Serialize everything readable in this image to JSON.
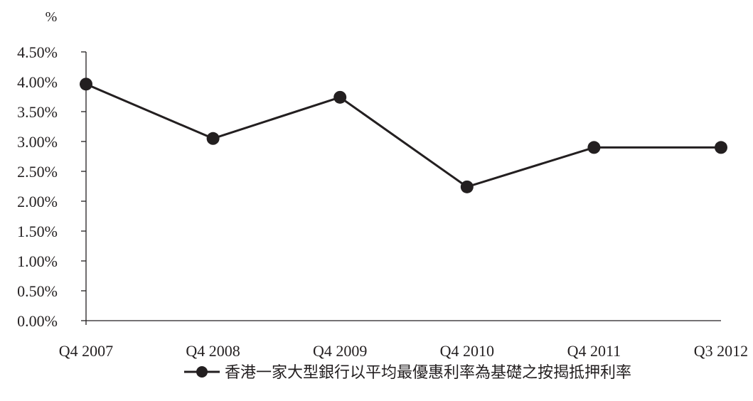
{
  "chart_data": {
    "type": "line",
    "unit_label": "%",
    "categories": [
      "Q4 2007",
      "Q4 2008",
      "Q4 2009",
      "Q4 2010",
      "Q4 2011",
      "Q3 2012"
    ],
    "yticks": [
      "0.00%",
      "0.50%",
      "1.00%",
      "1.50%",
      "2.00%",
      "2.50%",
      "3.00%",
      "3.50%",
      "4.00%",
      "4.50%"
    ],
    "ylim": [
      0,
      4.5
    ],
    "grid": false,
    "legend_position": "bottom",
    "series": [
      {
        "name": "香港一家大型銀行以平均最優惠利率為基礎之按揭抵押利率",
        "color": "#231f20",
        "values": [
          3.96,
          3.05,
          3.74,
          2.24,
          2.9,
          2.9
        ]
      }
    ]
  }
}
